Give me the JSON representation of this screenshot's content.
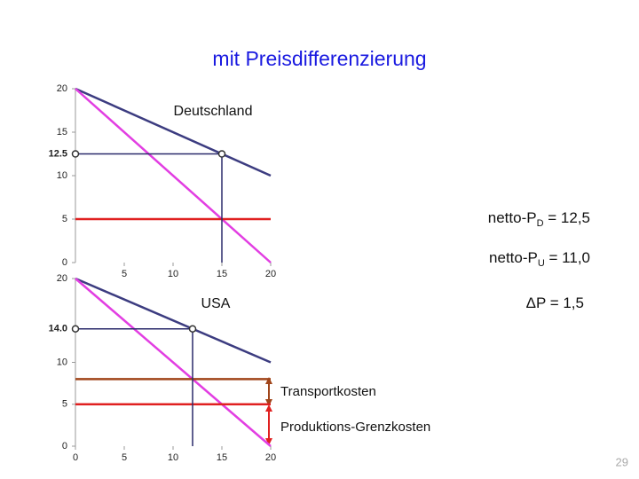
{
  "title": "mit Preisdifferenzierung",
  "page_number": "29",
  "annotations": [
    {
      "text": "netto-P",
      "sub": "D",
      "rest": " = 12,5"
    },
    {
      "text": "netto-P",
      "sub": "U",
      "rest": " = 11,0"
    },
    {
      "text": "ΔP = 1,5"
    }
  ],
  "chart_data": [
    {
      "type": "line",
      "title": "Deutschland",
      "xlim": [
        0,
        20
      ],
      "ylim": [
        0,
        20
      ],
      "xticks": [
        5,
        10,
        15,
        20
      ],
      "yticks": [
        0,
        5,
        10,
        12.5,
        15,
        20
      ],
      "series": [
        {
          "color": "#3c3c80",
          "x": [
            0,
            20
          ],
          "values": [
            20,
            10
          ]
        },
        {
          "color": "#e23ee2",
          "x": [
            0,
            20
          ],
          "values": [
            20,
            0
          ]
        },
        {
          "color": "#e02020",
          "x": [
            0,
            20
          ],
          "values": [
            5,
            5
          ]
        }
      ],
      "optimum": {
        "x": 15,
        "y": 12.5
      },
      "annotations": []
    },
    {
      "type": "line",
      "title": "USA",
      "xlim": [
        0,
        20
      ],
      "ylim": [
        0,
        20
      ],
      "xticks": [
        0,
        5,
        10,
        15,
        20
      ],
      "yticks": [
        0,
        5,
        10,
        {
          "value": 14,
          "label": "14.0"
        },
        20
      ],
      "series": [
        {
          "color": "#3c3c80",
          "x": [
            0,
            20
          ],
          "values": [
            20,
            10
          ]
        },
        {
          "color": "#e23ee2",
          "x": [
            0,
            20
          ],
          "values": [
            20,
            0
          ]
        },
        {
          "color": "#e02020",
          "x": [
            0,
            20
          ],
          "values": [
            5,
            5
          ]
        },
        {
          "color": "#a0451a",
          "x": [
            0,
            20
          ],
          "values": [
            8,
            8
          ]
        }
      ],
      "optimum": {
        "x": 12,
        "y": 14
      },
      "annotations": [
        "Transportkosten",
        "Produktions-Grenzkosten"
      ]
    }
  ]
}
